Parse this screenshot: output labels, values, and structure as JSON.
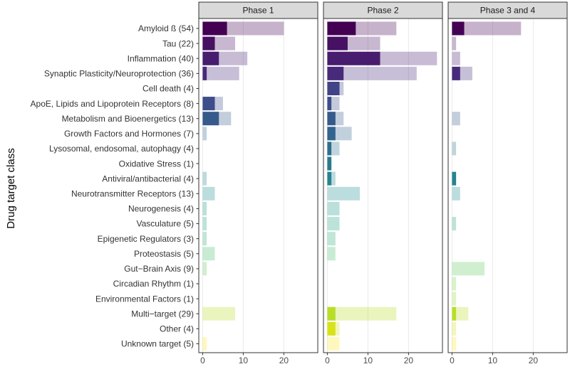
{
  "chart_data": {
    "type": "bar",
    "orientation": "horizontal",
    "ylabel": "Drug target class",
    "xlabel": "",
    "xlim": [
      -0.95,
      28.35
    ],
    "xticks": [
      0,
      10,
      20
    ],
    "grid": "vertical major",
    "legend": "none",
    "categories": [
      "Amyloid ß (54)",
      "Tau (22)",
      "Inflammation (40)",
      "Synaptic Plasticity/Neuroprotection (36)",
      "Cell death (4)",
      "ApoE, Lipids and Lipoprotein Receptors (8)",
      "Metabolism and Bioenergetics (13)",
      "Growth Factors and Hormones (7)",
      "Lysosomal, endosomal, autophagy (4)",
      "Oxidative Stress (1)",
      "Antiviral/antibacterial (4)",
      "Neurotransmitter Receptors (13)",
      "Neurogenesis (4)",
      "Vasculature (5)",
      "Epigenetic Regulators (3)",
      "Proteostasis (5)",
      "Gut−Brain Axis (9)",
      "Circadian Rhythm (1)",
      "Environmental Factors (1)",
      "Multi−target (29)",
      "Other (4)",
      "Unknown target (5)"
    ],
    "colors": [
      "#440154",
      "#471063",
      "#481d6f",
      "#472a7a",
      "#414487",
      "#3c4f8a",
      "#375a8c",
      "#32648e",
      "#2d6f8e",
      "#297a8e",
      "#25848e",
      "#218e8d",
      "#1f998a",
      "#22a384",
      "#2cad7c",
      "#4ac16d",
      "#62cb5f",
      "#7fd34e",
      "#9bd93c",
      "#b8de29",
      "#d8e219",
      "#fde725"
    ],
    "light_opacity": 0.3,
    "panels": [
      {
        "title": "Phase 1",
        "total": [
          20,
          8,
          11,
          9,
          0,
          5,
          7,
          1,
          0,
          0,
          1,
          3,
          1,
          1,
          1,
          3,
          1,
          0,
          0,
          8,
          0,
          1
        ],
        "subset": [
          6,
          3,
          4,
          1,
          0,
          3,
          4,
          0,
          0,
          0,
          0,
          0,
          0,
          0,
          0,
          0,
          0,
          0,
          0,
          0,
          0,
          0
        ]
      },
      {
        "title": "Phase 2",
        "total": [
          17,
          13,
          27,
          22,
          4,
          3,
          4,
          6,
          3,
          1,
          2,
          8,
          3,
          3,
          2,
          2,
          0,
          0,
          0,
          17,
          3,
          3
        ],
        "subset": [
          7,
          5,
          13,
          4,
          3,
          1,
          2,
          2,
          1,
          1,
          1,
          0,
          0,
          0,
          0,
          0,
          0,
          0,
          0,
          2,
          2,
          0
        ]
      },
      {
        "title": "Phase 3 and 4",
        "total": [
          17,
          1,
          2,
          5,
          0,
          0,
          2,
          0,
          1,
          0,
          1,
          2,
          0,
          1,
          0,
          0,
          8,
          1,
          1,
          4,
          1,
          1
        ],
        "subset": [
          3,
          0,
          0,
          2,
          0,
          0,
          0,
          0,
          0,
          0,
          1,
          0,
          0,
          0,
          0,
          0,
          0,
          0,
          0,
          1,
          0,
          0
        ]
      }
    ]
  }
}
